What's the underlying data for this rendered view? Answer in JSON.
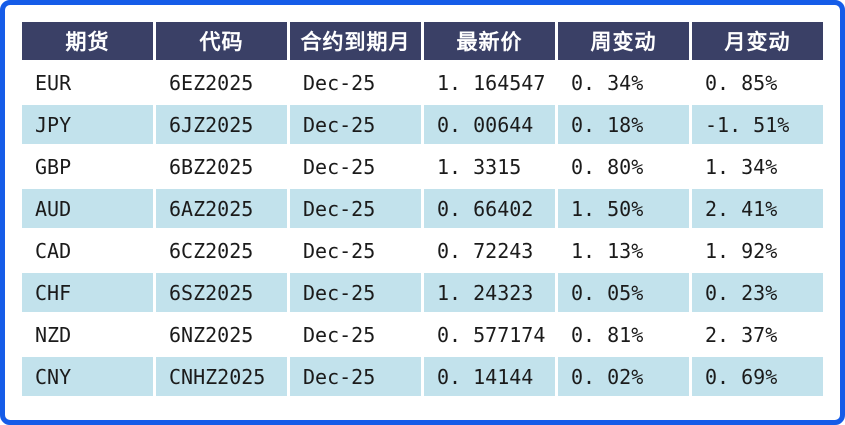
{
  "colors": {
    "accent_border": "#155ce8",
    "header_bg": "#3a4066",
    "header_text": "#ffffff",
    "row_stripe": "#c2e2ec",
    "change_up_red": "#f21b1b",
    "change_down_green": "#1f9e44",
    "body_text": "#1b1b1b",
    "background": "#ffffff"
  },
  "table": {
    "columns": [
      {
        "key": "future",
        "label": "期货"
      },
      {
        "key": "code",
        "label": "代码"
      },
      {
        "key": "expiry-month",
        "label": "合约到期月"
      },
      {
        "key": "latest-price",
        "label": "最新价"
      },
      {
        "key": "week-change",
        "label": "周变动"
      },
      {
        "key": "month-change",
        "label": "月变动"
      }
    ],
    "rows": [
      {
        "cells": [
          {
            "text": "EUR"
          },
          {
            "text": "6EZ2025"
          },
          {
            "text": "Dec-25"
          },
          {
            "text": "1. 164547"
          },
          {
            "text": "0. 34%",
            "color": "red"
          },
          {
            "text": "0. 85%",
            "color": "red"
          }
        ]
      },
      {
        "cells": [
          {
            "text": "JPY"
          },
          {
            "text": "6JZ2025"
          },
          {
            "text": "Dec-25"
          },
          {
            "text": "0. 00644"
          },
          {
            "text": "0. 18%",
            "color": "red"
          },
          {
            "text": "-1. 51%",
            "color": "green"
          }
        ]
      },
      {
        "cells": [
          {
            "text": "GBP"
          },
          {
            "text": "6BZ2025"
          },
          {
            "text": "Dec-25"
          },
          {
            "text": "1. 3315"
          },
          {
            "text": "0. 80%",
            "color": "red"
          },
          {
            "text": "1. 34%",
            "color": "red"
          }
        ]
      },
      {
        "cells": [
          {
            "text": "AUD"
          },
          {
            "text": "6AZ2025"
          },
          {
            "text": "Dec-25"
          },
          {
            "text": "0. 66402"
          },
          {
            "text": "1. 50%",
            "color": "red"
          },
          {
            "text": "2. 41%",
            "color": "red"
          }
        ]
      },
      {
        "cells": [
          {
            "text": "CAD"
          },
          {
            "text": "6CZ2025"
          },
          {
            "text": "Dec-25"
          },
          {
            "text": "0. 72243"
          },
          {
            "text": "1. 13%",
            "color": "red"
          },
          {
            "text": "1. 92%",
            "color": "red"
          }
        ]
      },
      {
        "cells": [
          {
            "text": "CHF"
          },
          {
            "text": "6SZ2025"
          },
          {
            "text": "Dec-25"
          },
          {
            "text": "1. 24323"
          },
          {
            "text": "0. 05%",
            "color": "red"
          },
          {
            "text": "0. 23%",
            "color": "red"
          }
        ]
      },
      {
        "cells": [
          {
            "text": "NZD"
          },
          {
            "text": "6NZ2025"
          },
          {
            "text": "Dec-25"
          },
          {
            "text": "0. 577174"
          },
          {
            "text": "0. 81%",
            "color": "red"
          },
          {
            "text": "2. 37%",
            "color": "red"
          }
        ]
      },
      {
        "cells": [
          {
            "text": "CNY"
          },
          {
            "text": "CNHZ2025"
          },
          {
            "text": "Dec-25"
          },
          {
            "text": "0. 14144"
          },
          {
            "text": "0. 02%",
            "color": "red"
          },
          {
            "text": "0. 69%",
            "color": "red"
          }
        ]
      }
    ]
  },
  "chart_data": {
    "type": "table",
    "title": "",
    "columns": [
      "期货",
      "代码",
      "合约到期月",
      "最新价",
      "周变动",
      "月变动"
    ],
    "rows": [
      [
        "EUR",
        "6EZ2025",
        "Dec-25",
        1.164547,
        0.34,
        0.85
      ],
      [
        "JPY",
        "6JZ2025",
        "Dec-25",
        0.00644,
        0.18,
        -1.51
      ],
      [
        "GBP",
        "6BZ2025",
        "Dec-25",
        1.3315,
        0.8,
        1.34
      ],
      [
        "AUD",
        "6AZ2025",
        "Dec-25",
        0.66402,
        1.5,
        2.41
      ],
      [
        "CAD",
        "6CZ2025",
        "Dec-25",
        0.72243,
        1.13,
        1.92
      ],
      [
        "CHF",
        "6SZ2025",
        "Dec-25",
        1.24323,
        0.05,
        0.23
      ],
      [
        "NZD",
        "6NZ2025",
        "Dec-25",
        0.577174,
        0.81,
        2.37
      ],
      [
        "CNY",
        "CNHZ2025",
        "Dec-25",
        0.14144,
        0.02,
        0.69
      ]
    ],
    "notes": "周变动/月变动 values are percentages; positive changes shown in red, negative in green"
  }
}
